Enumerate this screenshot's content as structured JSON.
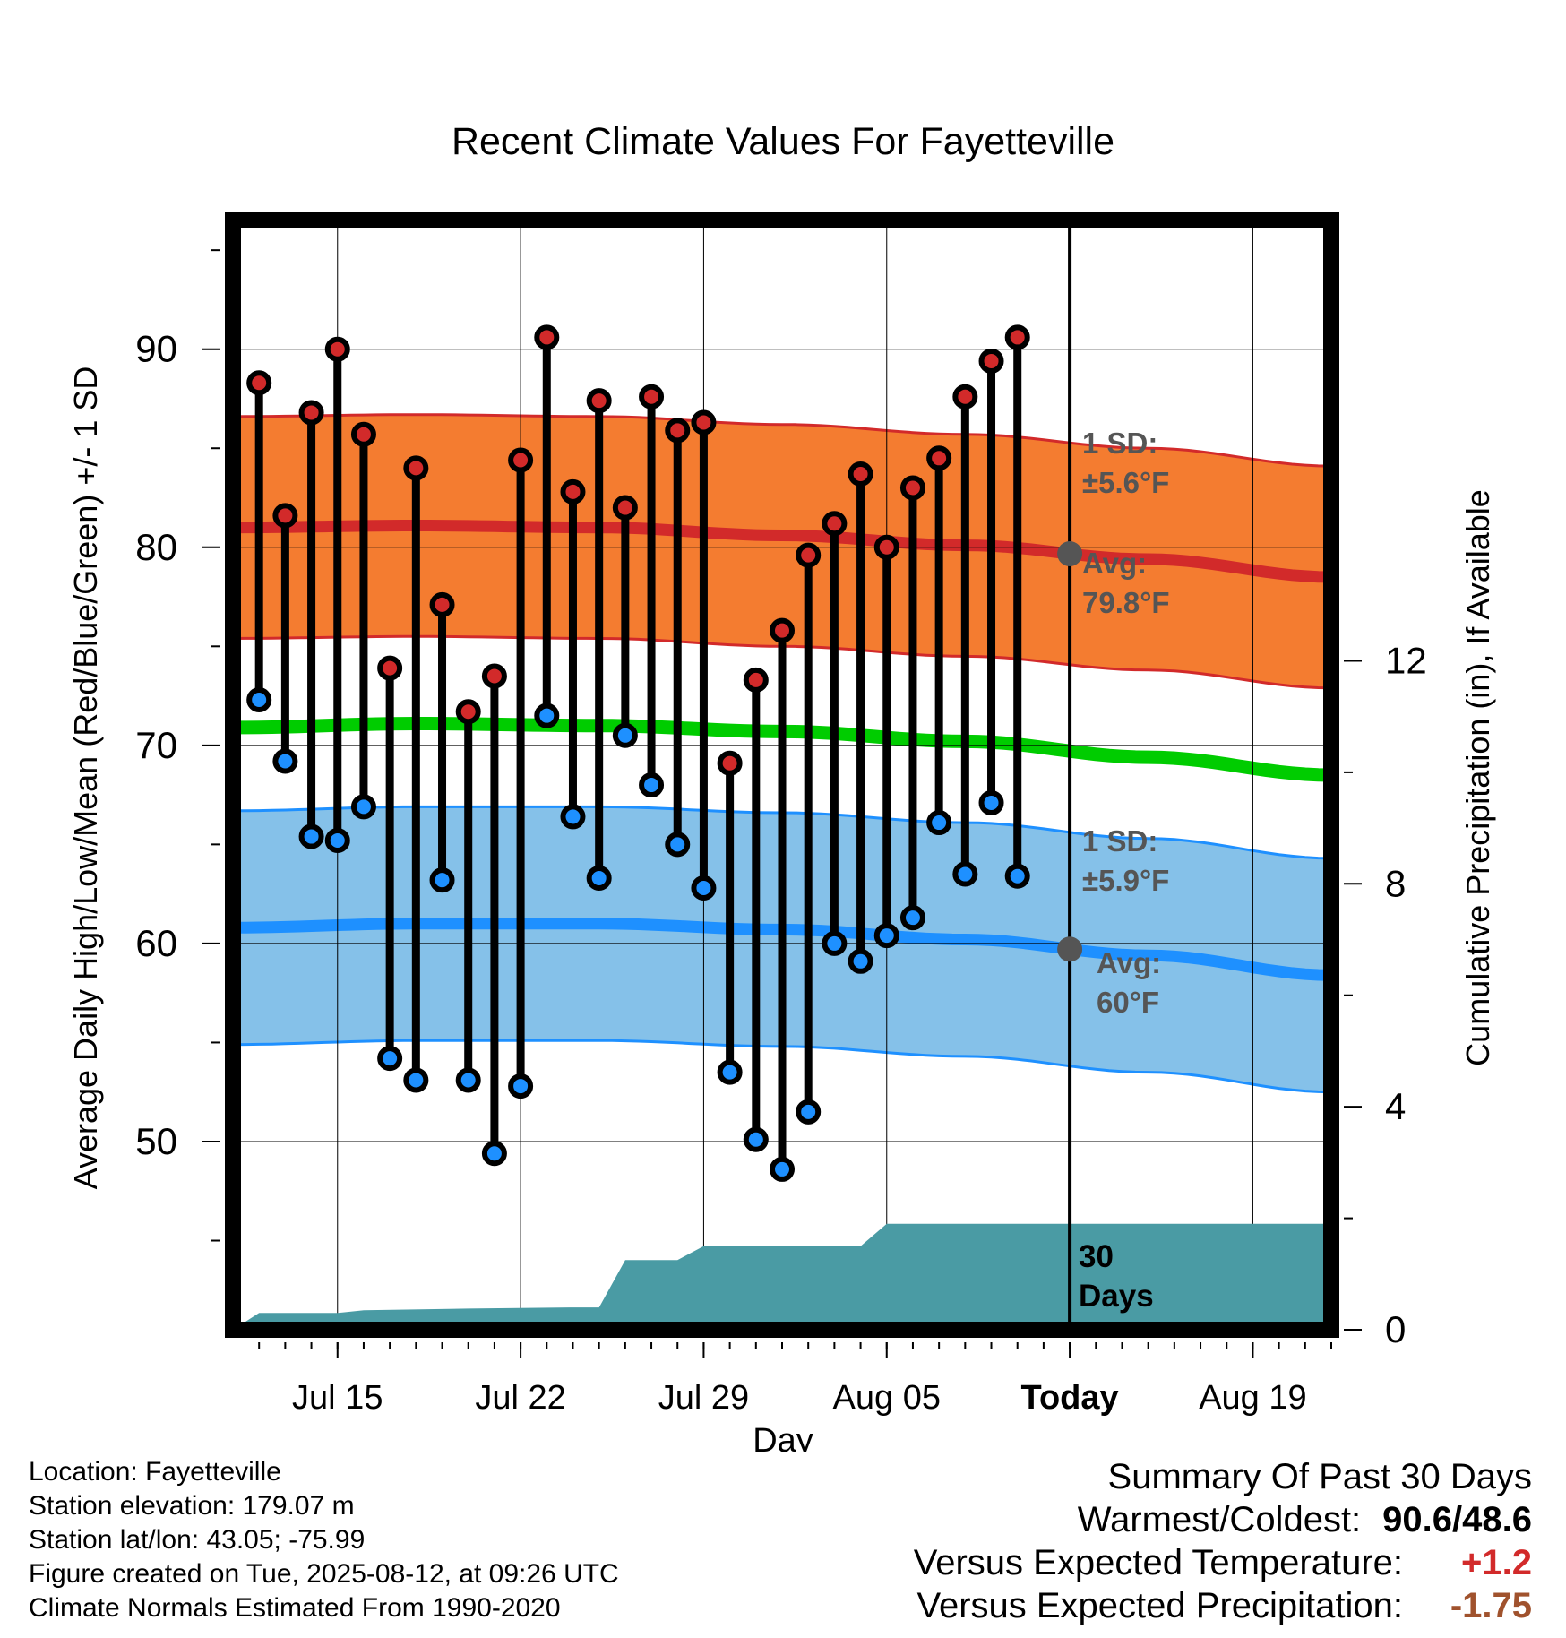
{
  "chart_data": {
    "type": "line",
    "title": "Recent Climate Values For Fayetteville",
    "xlabel": "Day",
    "ylabel": "Average Daily High/Low/Mean (Red/Blue/Green) +/- 1 SD",
    "y2label": "Cumulative Precipitation (in), If Available",
    "xlim": [
      "2025-07-11",
      "2025-08-22"
    ],
    "ylim": [
      40.5,
      96.5
    ],
    "y2lim": [
      0,
      19.9
    ],
    "x_ticks": [
      {
        "date": "2025-07-15",
        "label": "Jul 15"
      },
      {
        "date": "2025-07-22",
        "label": "Jul 22"
      },
      {
        "date": "2025-07-29",
        "label": "Jul 29"
      },
      {
        "date": "2025-08-05",
        "label": "Aug 05"
      },
      {
        "date": "2025-08-12",
        "label": "Today"
      },
      {
        "date": "2025-08-19",
        "label": "Aug 19"
      }
    ],
    "y_ticks": [
      50,
      60,
      70,
      80,
      90
    ],
    "y2_ticks": [
      0,
      4,
      8,
      12
    ],
    "grid": true,
    "colors": {
      "high_band": "#f47c30",
      "high_line": "#d22a2a",
      "low_band": "#85c1e9",
      "low_line": "#1e90ff",
      "mean_line": "#00cc00",
      "precip": "#4a9ba4",
      "today_marker": "#555555"
    },
    "normals": {
      "dates": [
        "2025-07-11",
        "2025-07-18",
        "2025-07-25",
        "2025-08-01",
        "2025-08-08",
        "2025-08-15",
        "2025-08-22"
      ],
      "high_avg": [
        81.0,
        81.1,
        81.0,
        80.6,
        80.1,
        79.4,
        78.5
      ],
      "low_avg": [
        60.8,
        61.0,
        61.0,
        60.7,
        60.2,
        59.4,
        58.4
      ],
      "mean": [
        70.9,
        71.1,
        71.0,
        70.7,
        70.2,
        69.4,
        68.5
      ]
    },
    "sd_labels": {
      "high_sd": "±5.6°F",
      "low_sd": "±5.9°F",
      "high_avg": "79.8°F",
      "low_avg": "60°F"
    },
    "labels": {
      "sd_prefix": "1 SD:",
      "avg_prefix": "Avg:",
      "days_line1": "30",
      "days_line2": "Days"
    },
    "daily": [
      {
        "date": "2025-07-12",
        "high": 88.3,
        "low": 72.3
      },
      {
        "date": "2025-07-13",
        "high": 81.6,
        "low": 69.2
      },
      {
        "date": "2025-07-14",
        "high": 86.8,
        "low": 65.4
      },
      {
        "date": "2025-07-15",
        "high": 90.0,
        "low": 65.2
      },
      {
        "date": "2025-07-16",
        "high": 85.7,
        "low": 66.9
      },
      {
        "date": "2025-07-17",
        "high": 73.9,
        "low": 54.2
      },
      {
        "date": "2025-07-18",
        "high": 84.0,
        "low": 53.1
      },
      {
        "date": "2025-07-19",
        "high": 77.1,
        "low": 63.2
      },
      {
        "date": "2025-07-20",
        "high": 71.7,
        "low": 53.1
      },
      {
        "date": "2025-07-21",
        "high": 73.5,
        "low": 49.4
      },
      {
        "date": "2025-07-22",
        "high": 84.4,
        "low": 52.8
      },
      {
        "date": "2025-07-23",
        "high": 90.6,
        "low": 71.5
      },
      {
        "date": "2025-07-24",
        "high": 82.8,
        "low": 66.4
      },
      {
        "date": "2025-07-25",
        "high": 87.4,
        "low": 63.3
      },
      {
        "date": "2025-07-26",
        "high": 82.0,
        "low": 70.5
      },
      {
        "date": "2025-07-27",
        "high": 87.6,
        "low": 68.0
      },
      {
        "date": "2025-07-28",
        "high": 85.9,
        "low": 65.0
      },
      {
        "date": "2025-07-29",
        "high": 86.3,
        "low": 62.8
      },
      {
        "date": "2025-07-30",
        "high": 69.1,
        "low": 53.5
      },
      {
        "date": "2025-07-31",
        "high": 73.3,
        "low": 50.1
      },
      {
        "date": "2025-08-01",
        "high": 75.8,
        "low": 48.6
      },
      {
        "date": "2025-08-02",
        "high": 79.6,
        "low": 51.5
      },
      {
        "date": "2025-08-03",
        "high": 81.2,
        "low": 60.0
      },
      {
        "date": "2025-08-04",
        "high": 83.7,
        "low": 59.1
      },
      {
        "date": "2025-08-05",
        "high": 80.0,
        "low": 60.4
      },
      {
        "date": "2025-08-06",
        "high": 83.0,
        "low": 61.3
      },
      {
        "date": "2025-08-07",
        "high": 84.5,
        "low": 66.1
      },
      {
        "date": "2025-08-08",
        "high": 87.6,
        "low": 63.5
      },
      {
        "date": "2025-08-09",
        "high": 89.4,
        "low": 67.1
      },
      {
        "date": "2025-08-10",
        "high": 90.6,
        "low": 63.4
      }
    ],
    "precip_cumulative": [
      {
        "date": "2025-07-11",
        "value": 0.0
      },
      {
        "date": "2025-07-12",
        "value": 0.3
      },
      {
        "date": "2025-07-13",
        "value": 0.3
      },
      {
        "date": "2025-07-14",
        "value": 0.3
      },
      {
        "date": "2025-07-15",
        "value": 0.3
      },
      {
        "date": "2025-07-16",
        "value": 0.35
      },
      {
        "date": "2025-07-20",
        "value": 0.38
      },
      {
        "date": "2025-07-24",
        "value": 0.4
      },
      {
        "date": "2025-07-25",
        "value": 0.4
      },
      {
        "date": "2025-07-26",
        "value": 1.25
      },
      {
        "date": "2025-07-28",
        "value": 1.25
      },
      {
        "date": "2025-07-29",
        "value": 1.5
      },
      {
        "date": "2025-08-04",
        "value": 1.5
      },
      {
        "date": "2025-08-05",
        "value": 1.9
      },
      {
        "date": "2025-08-22",
        "value": 1.9
      }
    ]
  },
  "info": {
    "location": "Location: Fayetteville",
    "elevation": "Station elevation: 179.07 m",
    "latlon": "Station lat/lon: 43.05; -75.99",
    "created": "Figure created on Tue, 2025-08-12, at 09:26 UTC",
    "normals": "Climate Normals Estimated From 1990-2020"
  },
  "summary": {
    "title": "Summary Of Past 30 Days",
    "warmest_label": "Warmest/Coldest:",
    "warmest_value": "90.6/48.6",
    "temp_label": "Versus Expected Temperature:",
    "temp_value": "+1.2",
    "temp_color": "#d22a2a",
    "precip_label": "Versus Expected Precipitation:",
    "precip_value": "-1.75",
    "precip_color": "#a0522d"
  }
}
